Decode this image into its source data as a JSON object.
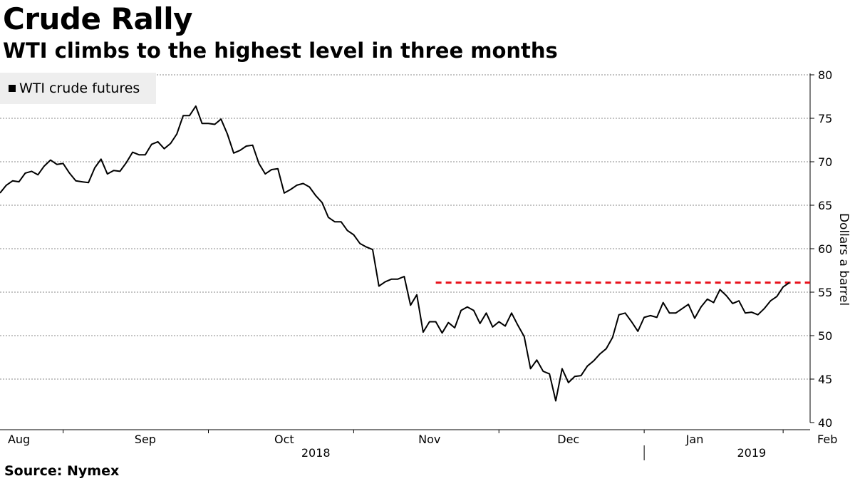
{
  "header": {
    "title": "Crude Rally",
    "subtitle": "WTI climbs to the highest level in three months"
  },
  "footer": {
    "source": "Source: Nymex"
  },
  "colors": {
    "line": "#000000",
    "reference_line": "#e8101a",
    "grid": "#888888",
    "legend_bg": "#eeeeee"
  },
  "chart_data": {
    "type": "line",
    "title": "Crude Rally",
    "subtitle": "WTI climbs to the highest level in three months",
    "ylabel": "Dollars a barrel",
    "ylim": [
      40,
      80
    ],
    "yticks": [
      40,
      45,
      50,
      55,
      60,
      65,
      70,
      75,
      80
    ],
    "x_month_labels": [
      {
        "label": "Aug",
        "index": 3
      },
      {
        "label": "Sep",
        "index": 23
      },
      {
        "label": "Oct",
        "index": 45
      },
      {
        "label": "Nov",
        "index": 68
      },
      {
        "label": "Dec",
        "index": 90
      },
      {
        "label": "Jan",
        "index": 110
      },
      {
        "label": "Feb",
        "index": 131
      }
    ],
    "x_month_boundaries": [
      10,
      33,
      56,
      79,
      102,
      124
    ],
    "x_year_labels": [
      {
        "label": "2018",
        "index": 50
      },
      {
        "label": "2019",
        "index": 119
      }
    ],
    "year_boundary_index": 102,
    "legend": [
      "WTI crude futures"
    ],
    "reference_line": {
      "value": 56.1,
      "start_index": 69,
      "style": "dashed"
    },
    "series": [
      {
        "name": "WTI crude futures",
        "values": [
          66.4,
          67.3,
          67.8,
          67.7,
          68.7,
          68.9,
          68.5,
          69.5,
          70.2,
          69.7,
          69.8,
          68.7,
          67.8,
          67.7,
          67.6,
          69.3,
          70.3,
          68.6,
          69.0,
          68.9,
          69.9,
          71.1,
          70.8,
          70.8,
          72.0,
          72.3,
          71.5,
          72.1,
          73.2,
          75.3,
          75.3,
          76.4,
          74.4,
          74.4,
          74.3,
          74.9,
          73.2,
          71.0,
          71.3,
          71.8,
          71.9,
          69.8,
          68.6,
          69.1,
          69.2,
          66.4,
          66.8,
          67.3,
          67.5,
          67.1,
          66.1,
          65.3,
          63.6,
          63.1,
          63.1,
          62.1,
          61.6,
          60.6,
          60.2,
          59.9,
          55.7,
          56.2,
          56.5,
          56.5,
          56.8,
          53.5,
          54.7,
          50.4,
          51.6,
          51.6,
          50.3,
          51.5,
          50.9,
          52.9,
          53.3,
          52.9,
          51.4,
          52.6,
          51.0,
          51.6,
          51.1,
          52.6,
          51.2,
          49.9,
          46.2,
          47.2,
          45.9,
          45.6,
          42.5,
          46.2,
          44.6,
          45.3,
          45.4,
          46.5,
          47.1,
          47.9,
          48.5,
          49.8,
          52.4,
          52.6,
          51.6,
          50.5,
          52.1,
          52.3,
          52.1,
          53.8,
          52.6,
          52.6,
          53.1,
          53.6,
          52.0,
          53.3,
          54.2,
          53.8,
          55.3,
          54.6,
          53.7,
          54.0,
          52.6,
          52.7,
          52.4,
          53.1,
          54.0,
          54.5,
          55.6,
          56.1
        ]
      }
    ]
  }
}
